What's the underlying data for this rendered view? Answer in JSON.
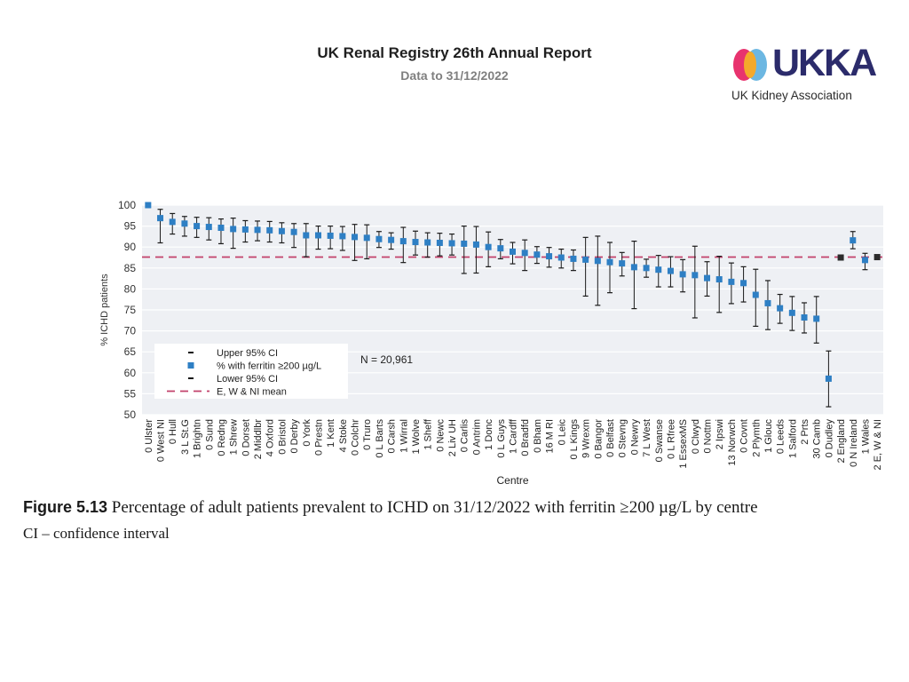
{
  "header": {
    "title": "UK Renal Registry 26th Annual Report",
    "subtitle": "Data to 31/12/2022"
  },
  "logo": {
    "name": "UKKA",
    "tagline": "UK Kidney Association",
    "colors": [
      "#e8336e",
      "#f4a92b",
      "#6cb7e2",
      "#2b2b6b"
    ]
  },
  "caption": {
    "figure_label": "Figure 5.13",
    "text": "Percentage of adult patients prevalent to ICHD on 31/12/2022 with ferritin ≥200 µg/L by centre",
    "note": "CI – confidence interval"
  },
  "chart_data": {
    "type": "scatter",
    "ylabel": "% ICHD patients",
    "xlabel": "Centre",
    "ylim": [
      50,
      100
    ],
    "yticks": [
      50,
      55,
      60,
      65,
      70,
      75,
      80,
      85,
      90,
      95,
      100
    ],
    "mean_line": 87.6,
    "n_label": "N = 20,961",
    "legend": {
      "upper": "Upper 95% CI",
      "point": "% with ferritin ≥200 µg/L",
      "lower": "Lower 95% CI",
      "mean": "E, W & NI mean"
    },
    "colors": {
      "point": "#2e7fc4",
      "summary_point": "#2b2b2b",
      "mean": "#c2416b",
      "ci": "#1a1a1a",
      "plot_bg": "#eef0f4",
      "grid": "#ffffff"
    },
    "centres": [
      "0 Ulster",
      "0 West NI",
      "0 Hull",
      "3 L St.G",
      "1 Brightn",
      "0 Sund",
      "0 Redng",
      "1 Shrew",
      "0 Dorset",
      "2 Middlbr",
      "4 Oxford",
      "0 Bristol",
      "0 Derby",
      "0 York",
      "0 Prestn",
      "1 Kent",
      "4 Stoke",
      "0 Colchr",
      "0 Truro",
      "0 L Barts",
      "0 Carsh",
      "1 Wirral",
      "1 Wolve",
      "1 Sheff",
      "0 Newc",
      "2 Liv UH",
      "0 Carlis",
      "0 Antrim",
      "1 Donc",
      "0 L Guys",
      "1 Cardff",
      "0 Bradfd",
      "0 Bham",
      "16 M RI",
      "0 Leic",
      "0 L Kings",
      "9 Wrexm",
      "0 Bangor",
      "0 Belfast",
      "0 Stevng",
      "0 Newry",
      "7 L West",
      "0 Swanse",
      "0 L Rfree",
      "1 EssexMS",
      "0 Clwyd",
      "0 Nottm",
      "2 Ipswi",
      "13 Norwch",
      "0 Covnt",
      "2 Plymth",
      "1 Glouc",
      "0 Leeds",
      "1 Salford",
      "2 Prts",
      "30 Camb",
      "0 Dudley",
      "2 England",
      "0 N Ireland",
      "1 Wales",
      "2 E, W & NI"
    ],
    "values": [
      100,
      96.9,
      96,
      95.6,
      95,
      94.8,
      94.6,
      94.3,
      94.2,
      94.1,
      94,
      93.8,
      93.6,
      92.8,
      92.8,
      92.7,
      92.6,
      92.4,
      92.2,
      91.9,
      91.7,
      91.4,
      91.2,
      91.1,
      91,
      90.9,
      90.8,
      90.6,
      90,
      89.7,
      88.9,
      88.6,
      88.2,
      87.8,
      87.5,
      87.2,
      87,
      86.7,
      86.4,
      86.1,
      85.2,
      85,
      84.6,
      84.3,
      83.5,
      83.3,
      82.6,
      82.3,
      81.7,
      81.4,
      78.6,
      76.6,
      75.4,
      74.3,
      73.2,
      72.9,
      58.6,
      87.5,
      91.6,
      86.9,
      87.6
    ],
    "lower": [
      100,
      91,
      93.1,
      92.6,
      92.3,
      91.7,
      90.8,
      89.7,
      91.2,
      91.5,
      91.2,
      91,
      89.9,
      87.7,
      89.5,
      89.6,
      89.2,
      86.8,
      87.2,
      89.9,
      89.5,
      86.3,
      88.1,
      87.6,
      87.9,
      88.1,
      83.7,
      83.8,
      85.3,
      87.2,
      86,
      84.4,
      86.1,
      85.2,
      85,
      84.4,
      78.3,
      76.1,
      79.1,
      83.1,
      75.3,
      82.8,
      80.5,
      80.5,
      79.3,
      73.1,
      78.3,
      74.4,
      76.5,
      76.9,
      71.1,
      70.3,
      71.8,
      70.1,
      69.5,
      67.1,
      51.9,
      87.3,
      89.6,
      84.6,
      87.4
    ],
    "upper": [
      100,
      99,
      98,
      97.3,
      97.1,
      97,
      96.7,
      96.9,
      96.3,
      96.2,
      96.1,
      95.8,
      95.6,
      95.6,
      95,
      95,
      94.9,
      95.4,
      95.3,
      93.7,
      93.4,
      94.7,
      93.8,
      93.4,
      93.3,
      93.1,
      95,
      94.9,
      93.6,
      91.8,
      91.1,
      91.7,
      90.1,
      89.9,
      89.5,
      89.3,
      92.3,
      92.6,
      91.1,
      88.7,
      91.4,
      87.1,
      88,
      87.7,
      87,
      90.2,
      86.5,
      87.8,
      86.2,
      85.3,
      84.7,
      82,
      78.7,
      78.2,
      76.7,
      78.2,
      65.2,
      87.8,
      93.7,
      88.5,
      87.9
    ]
  }
}
